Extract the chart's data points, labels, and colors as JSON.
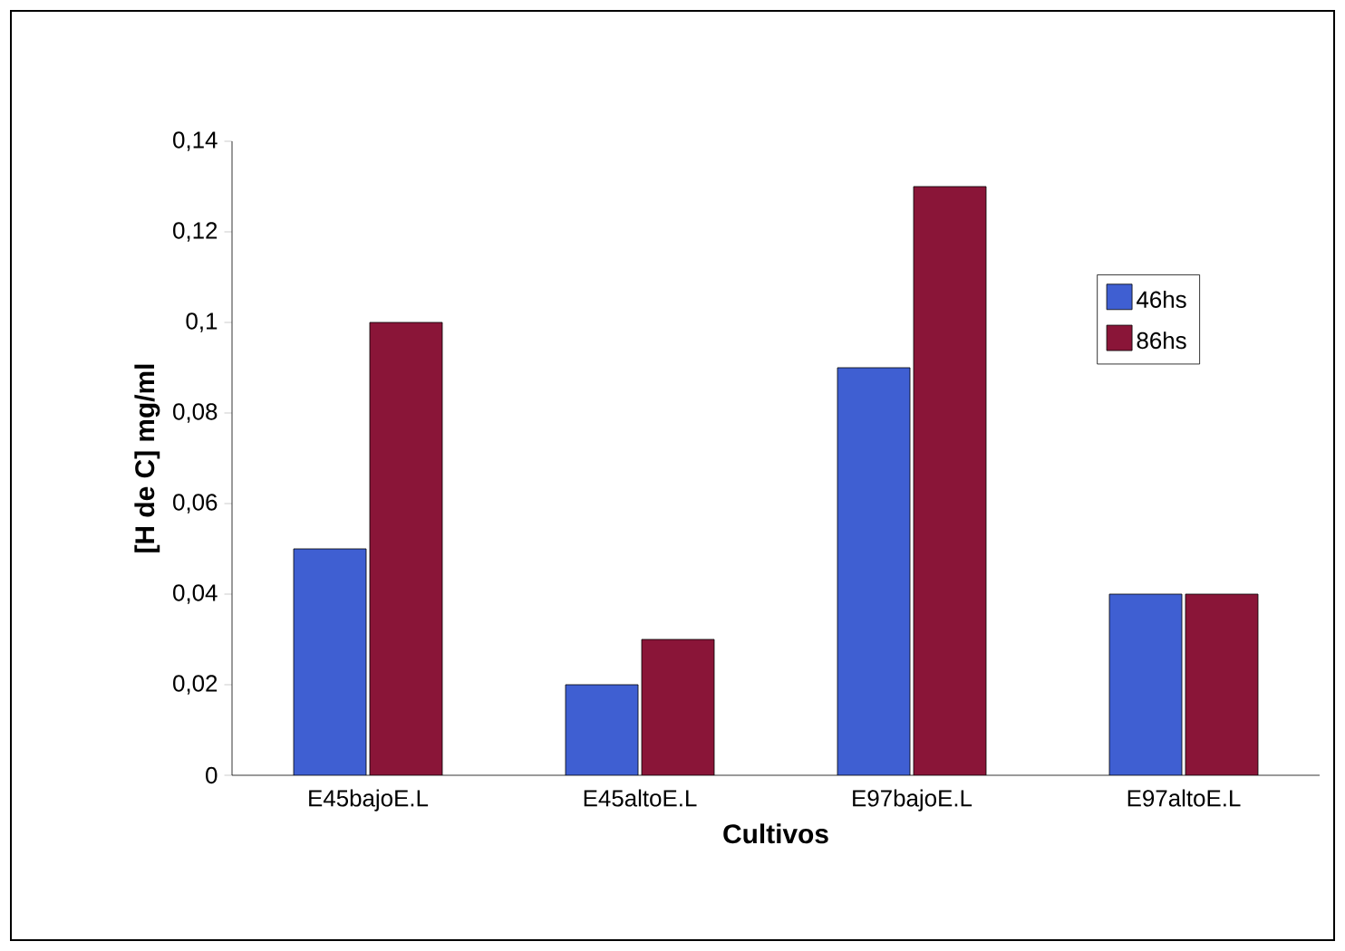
{
  "chart_data": {
    "type": "bar",
    "xlabel": "Cultivos",
    "ylabel": "[H de C] mg/ml",
    "categories": [
      "E45bajoE.L",
      "E45altoE.L",
      "E97bajoE.L",
      "E97altoE.L"
    ],
    "series": [
      {
        "name": "46hs",
        "color": "#3f5fd2",
        "values": [
          0.05,
          0.02,
          0.09,
          0.04
        ]
      },
      {
        "name": "86hs",
        "color": "#8a1538",
        "values": [
          0.1,
          0.03,
          0.13,
          0.04
        ]
      }
    ],
    "ylim": [
      0,
      0.14
    ],
    "yticks": [
      0,
      {
        "value": 0.02,
        "label": "0,02"
      },
      {
        "value": 0.04,
        "label": "0,04"
      },
      {
        "value": 0.06,
        "label": "0,06"
      },
      {
        "value": 0.08,
        "label": "0,08"
      },
      {
        "value": 0.1,
        "label": "0,1"
      },
      {
        "value": 0.12,
        "label": "0,12"
      },
      {
        "value": 0.14,
        "label": "0,14"
      }
    ],
    "grid": false,
    "legend": "top right"
  }
}
